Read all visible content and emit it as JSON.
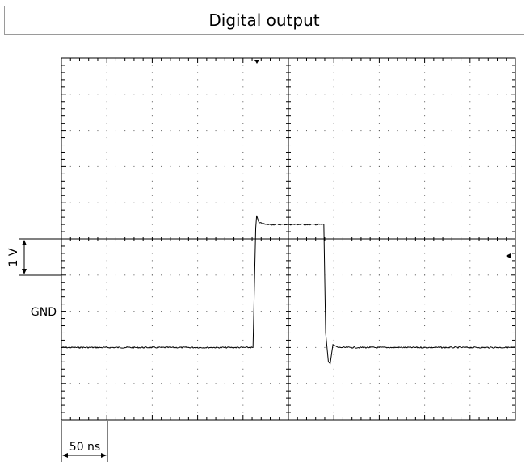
{
  "title": "Digital output",
  "chart_data": {
    "type": "line",
    "title": "Digital output",
    "labels": {
      "gnd": "GND",
      "voltage_scale": "1 V",
      "time_scale": "50 ns"
    },
    "grid": {
      "divisions_x": 10,
      "divisions_y": 10,
      "minor_per_division": 5,
      "visible": true
    },
    "ylim": [
      -2,
      8
    ],
    "xlim": [
      0,
      10
    ],
    "series": [
      {
        "x": [
          0.0,
          4.22,
          4.28,
          4.3,
          4.35,
          4.5,
          5.78,
          5.82,
          5.88,
          5.92,
          5.98,
          6.1,
          10.0
        ],
        "y": [
          0.0,
          0.0,
          3.3,
          3.65,
          3.45,
          3.4,
          3.4,
          0.4,
          -0.4,
          -0.45,
          0.08,
          0.0,
          0.0
        ]
      }
    ]
  }
}
